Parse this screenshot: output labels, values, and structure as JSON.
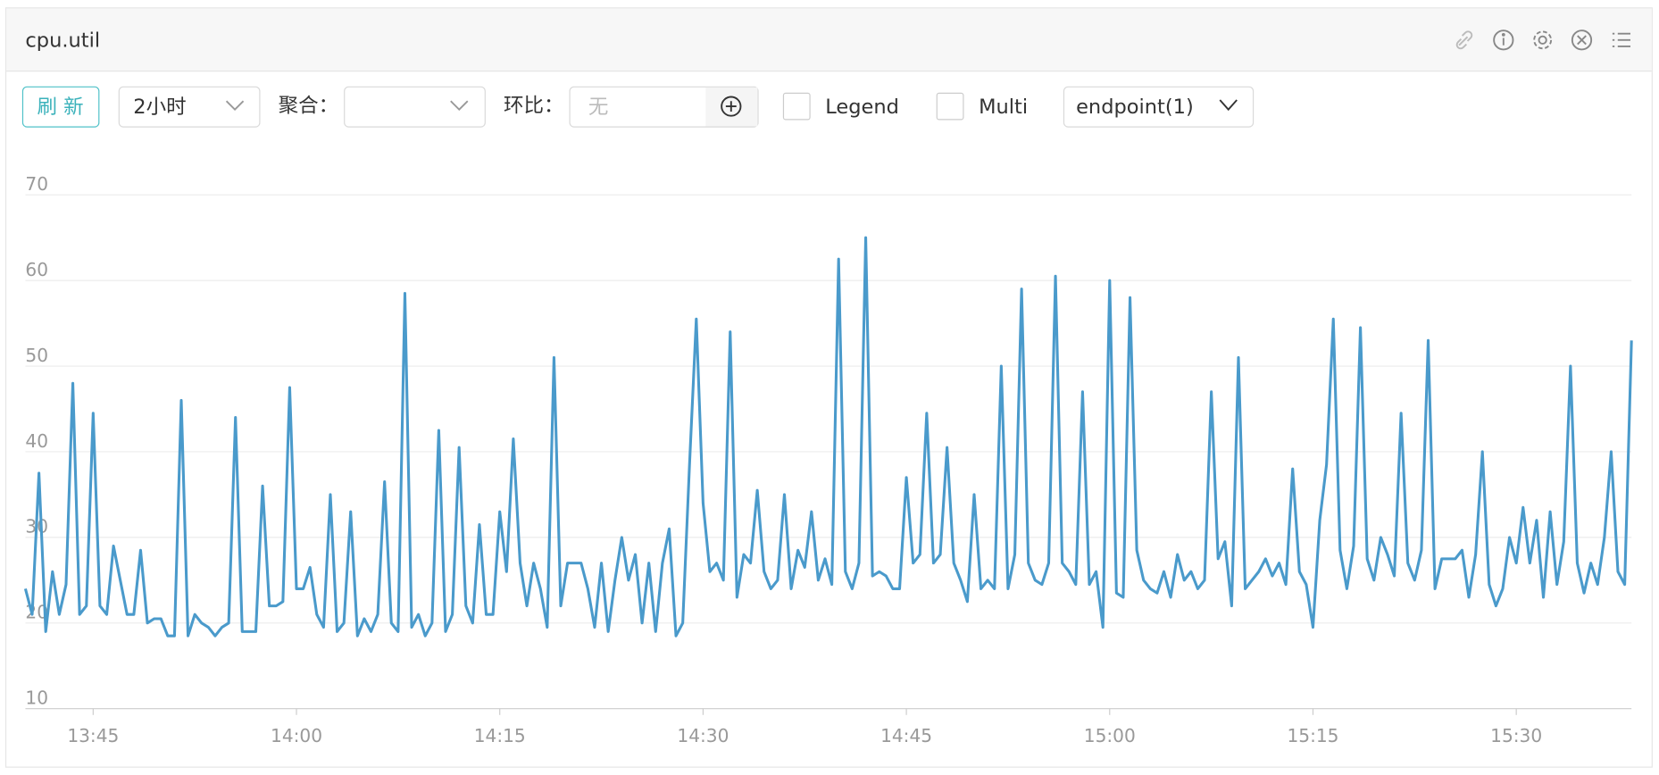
{
  "header": {
    "title": "cpu.util"
  },
  "toolbar": {
    "refresh": "刷 新",
    "time_range": "2小时",
    "aggregate_label": "聚合：",
    "compare_label": "环比：",
    "compare_placeholder": "无",
    "legend_checkbox": "Legend",
    "multi_checkbox": "Multi",
    "endpoint_select": "endpoint(1)"
  },
  "chart_data": {
    "type": "line",
    "color": "#4a9acb",
    "grid": true,
    "xlim": [
      820,
      938.5
    ],
    "xticks": [
      {
        "value": 825,
        "label": "13:45"
      },
      {
        "value": 840,
        "label": "14:00"
      },
      {
        "value": 855,
        "label": "14:15"
      },
      {
        "value": 870,
        "label": "14:30"
      },
      {
        "value": 885,
        "label": "14:45"
      },
      {
        "value": 900,
        "label": "15:00"
      },
      {
        "value": 915,
        "label": "15:15"
      },
      {
        "value": 930,
        "label": "15:30"
      }
    ],
    "ylim": [
      10,
      74
    ],
    "yticks": [
      10,
      20,
      30,
      40,
      50,
      60,
      70
    ],
    "x": [
      820,
      820.5,
      821,
      821.5,
      822,
      822.5,
      823,
      823.5,
      824,
      824.5,
      825,
      825.5,
      826,
      826.5,
      827,
      827.5,
      828,
      828.5,
      829,
      829.5,
      830,
      830.5,
      831,
      831.5,
      832,
      832.5,
      833,
      833.5,
      834,
      834.5,
      835,
      835.5,
      836,
      836.5,
      837,
      837.5,
      838,
      838.5,
      839,
      839.5,
      840,
      840.5,
      841,
      841.5,
      842,
      842.5,
      843,
      843.5,
      844,
      844.5,
      845,
      845.5,
      846,
      846.5,
      847,
      847.5,
      848,
      848.5,
      849,
      849.5,
      850,
      850.5,
      851,
      851.5,
      852,
      852.5,
      853,
      853.5,
      854,
      854.5,
      855,
      855.5,
      856,
      856.5,
      857,
      857.5,
      858,
      858.5,
      859,
      859.5,
      860,
      860.5,
      861,
      861.5,
      862,
      862.5,
      863,
      863.5,
      864,
      864.5,
      865,
      865.5,
      866,
      866.5,
      867,
      867.5,
      868,
      868.5,
      869,
      869.5,
      870,
      870.5,
      871,
      871.5,
      872,
      872.5,
      873,
      873.5,
      874,
      874.5,
      875,
      875.5,
      876,
      876.5,
      877,
      877.5,
      878,
      878.5,
      879,
      879.5,
      880,
      880.5,
      881,
      881.5,
      882,
      882.5,
      883,
      883.5,
      884,
      884.5,
      885,
      885.5,
      886,
      886.5,
      887,
      887.5,
      888,
      888.5,
      889,
      889.5,
      890,
      890.5,
      891,
      891.5,
      892,
      892.5,
      893,
      893.5,
      894,
      894.5,
      895,
      895.5,
      896,
      896.5,
      897,
      897.5,
      898,
      898.5,
      899,
      899.5,
      900,
      900.5,
      901,
      901.5,
      902,
      902.5,
      903,
      903.5,
      904,
      904.5,
      905,
      905.5,
      906,
      906.5,
      907,
      907.5,
      908,
      908.5,
      909,
      909.5,
      910,
      910.5,
      911,
      911.5,
      912,
      912.5,
      913,
      913.5,
      914,
      914.5,
      915,
      915.5,
      916,
      916.5,
      917,
      917.5,
      918,
      918.5,
      919,
      919.5,
      920,
      920.5,
      921,
      921.5,
      922,
      922.5,
      923,
      923.5,
      924,
      924.5,
      925,
      925.5,
      926,
      926.5,
      927,
      927.5,
      928,
      928.5,
      929,
      929.5,
      930,
      930.5,
      931,
      931.5,
      932,
      932.5,
      933,
      933.5,
      934,
      934.5,
      935,
      935.5,
      936,
      936.5,
      937,
      937.5,
      938,
      938.5
    ],
    "values": [
      24,
      21,
      37.5,
      19,
      26,
      21,
      24.5,
      48,
      21,
      22,
      44.5,
      22,
      21,
      29,
      25,
      21,
      21,
      28.5,
      20,
      20.5,
      20.5,
      18.5,
      18.5,
      46,
      18.5,
      21,
      20,
      19.5,
      18.5,
      19.5,
      20,
      44,
      19,
      19,
      19,
      36,
      22,
      22,
      22.5,
      47.5,
      24,
      24,
      26.5,
      21,
      19.5,
      35,
      19,
      20,
      33,
      18.5,
      20.5,
      19,
      21,
      36.5,
      20,
      19,
      58.5,
      19.5,
      21,
      18.5,
      20,
      42.5,
      19,
      21,
      40.5,
      22,
      20,
      31.5,
      21,
      21,
      33,
      26,
      41.5,
      27,
      22,
      27,
      24,
      19.5,
      51,
      22,
      27,
      27,
      27,
      24,
      19.5,
      27,
      19,
      25,
      30,
      25,
      28,
      20,
      27,
      19,
      27,
      31,
      18.5,
      20,
      38.5,
      55.5,
      34,
      26,
      27,
      25,
      54,
      23,
      28,
      27,
      35.5,
      26,
      24,
      25,
      35,
      24,
      28.5,
      26.5,
      33,
      25,
      27.5,
      24.5,
      62.5,
      26,
      24,
      27,
      65,
      25.5,
      26,
      25.5,
      24,
      24,
      37,
      27,
      28,
      44.5,
      27,
      28,
      40.5,
      27,
      25,
      22.5,
      35,
      24,
      25,
      24,
      50,
      24,
      28,
      59,
      27,
      25,
      24.5,
      27,
      60.5,
      27,
      26,
      24.5,
      47,
      24.5,
      26,
      19.5,
      60,
      23.5,
      23,
      58,
      28.5,
      25,
      24,
      23.5,
      26,
      23,
      28,
      25,
      26,
      24,
      25,
      47,
      27.5,
      29.5,
      22,
      51,
      24,
      25,
      26,
      27.5,
      25.5,
      27,
      24.5,
      38,
      26,
      24.5,
      19.5,
      32,
      38.5,
      55.5,
      28.5,
      24,
      29,
      54.5,
      27.5,
      25,
      30,
      28,
      25.5,
      44.5,
      27,
      25,
      28.5,
      53,
      24,
      27.5,
      27.5,
      27.5,
      28.5,
      23,
      28,
      40,
      24.5,
      22,
      24,
      30,
      27,
      33.5,
      27,
      32,
      23,
      33,
      24.5,
      29.5,
      50,
      27,
      23.5,
      27,
      24.5,
      30,
      40,
      26,
      24.5,
      53
    ]
  }
}
